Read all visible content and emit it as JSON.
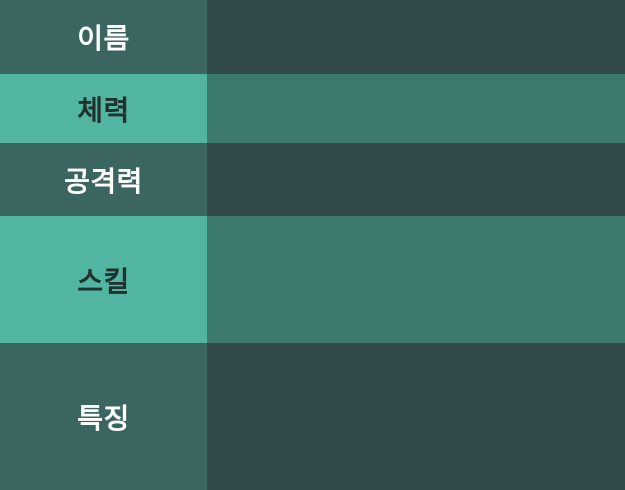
{
  "stats_table": {
    "rows": [
      {
        "label": "이름",
        "value": "",
        "style": "dark"
      },
      {
        "label": "체력",
        "value": "",
        "style": "light"
      },
      {
        "label": "공격력",
        "value": "",
        "style": "dark"
      },
      {
        "label": "스킬",
        "value": "",
        "style": "light"
      },
      {
        "label": "특징",
        "value": "",
        "style": "dark"
      }
    ]
  },
  "colors": {
    "dark_label_bg": "#3a6561",
    "dark_value_bg": "#324a4b",
    "light_label_bg": "#52b5a1",
    "light_value_bg": "#3e7970",
    "dark_label_text": "#ffffff",
    "light_label_text": "#20312f"
  }
}
